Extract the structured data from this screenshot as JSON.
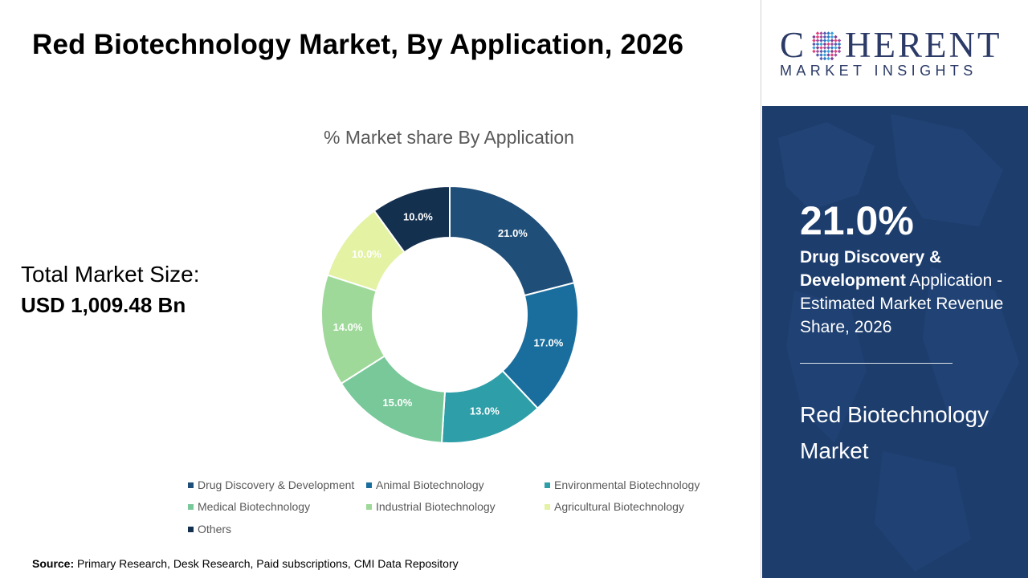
{
  "header": {
    "title": "Red Biotechnology Market, By Application, 2026"
  },
  "market_size": {
    "label": "Total Market Size:",
    "value": "USD 1,009.48 Bn"
  },
  "logo": {
    "brand_before": "C",
    "brand_after": "HERENT",
    "tagline": "MARKET INSIGHTS",
    "color": "#2b3a67"
  },
  "highlight": {
    "value": "21.0%",
    "desc_bold": "Drug Discovery & Development",
    "desc_rest": " Application - Estimated Market Revenue Share, 2026",
    "market_name": "Red Biotechnology Market"
  },
  "source": {
    "label": "Source:",
    "text": " Primary Research, Desk Research, Paid subscriptions, CMI Data Repository"
  },
  "chart_data": {
    "type": "pie",
    "title": "% Market share By Application",
    "legend_position": "bottom",
    "categories": [
      "Drug Discovery & Development",
      "Animal Biotechnology",
      "Environmental Biotechnology",
      "Medical Biotechnology",
      "Industrial Biotechnology",
      "Agricultural Biotechnology",
      "Others"
    ],
    "values": [
      21.0,
      17.0,
      13.0,
      15.0,
      14.0,
      10.0,
      10.0
    ],
    "labels": [
      "21.0%",
      "17.0%",
      "13.0%",
      "15.0%",
      "14.0%",
      "10.0%",
      "10.0%"
    ],
    "colors": [
      "#1f4e79",
      "#1a6e9e",
      "#2e9ea8",
      "#78c89a",
      "#9ed999",
      "#e3f2a3",
      "#14304f"
    ],
    "label_colors": [
      "#ffffff",
      "#ffffff",
      "#ffffff",
      "#ffffff",
      "#ffffff",
      "#ffffff",
      "#ffffff"
    ]
  }
}
